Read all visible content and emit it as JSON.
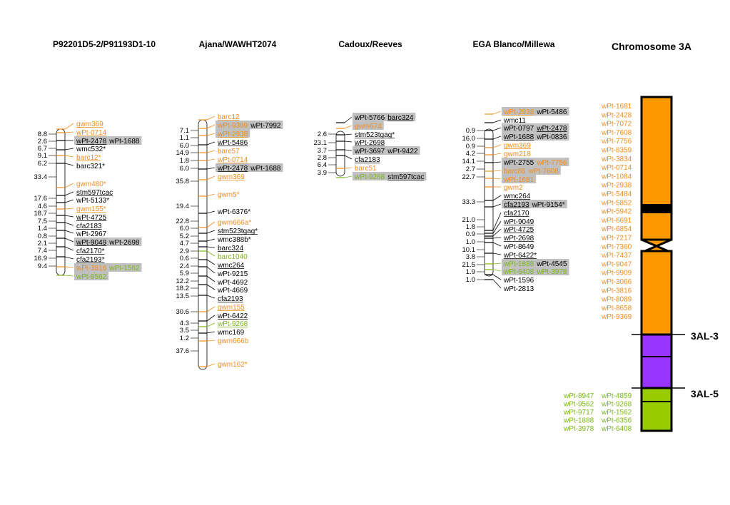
{
  "colors": {
    "orange": "#f08c1e",
    "green": "#7ab51d",
    "black": "#000000",
    "highlight": "#c0c0c0",
    "chrom_orange": "#ff9900",
    "chrom_purple": "#9933ff",
    "chrom_green": "#99cc00"
  },
  "maps": [
    {
      "title": "P92201D5-2/P91193D1-10",
      "intervals": [
        "8.8",
        "2.6",
        "6.7",
        "9.1",
        "6.2",
        "33.4",
        "17.6",
        "4.6",
        "18.7",
        "7.5",
        "1.4",
        "0.8",
        "2.1",
        "7.4",
        "16.9",
        "9.4"
      ],
      "loci": [
        {
          "parts": [
            {
              "text": "gwm369",
              "color": "orange",
              "u": true
            }
          ]
        },
        {
          "parts": [
            {
              "text": "wPt-0714",
              "color": "orange",
              "u": true
            }
          ]
        },
        {
          "parts": [
            {
              "text": "wPt-2478",
              "color": "black",
              "u": true
            },
            {
              "text": "wPt-1688",
              "color": "black",
              "u": false
            }
          ],
          "hl": true
        },
        {
          "parts": [
            {
              "text": "wmc532*",
              "color": "black",
              "u": false
            }
          ]
        },
        {
          "parts": [
            {
              "text": "barc12*",
              "color": "orange",
              "u": true
            }
          ]
        },
        {
          "parts": [
            {
              "text": "barc321*",
              "color": "black",
              "u": false
            }
          ]
        },
        {
          "parts": [
            {
              "text": "gwm480*",
              "color": "orange",
              "u": false
            }
          ]
        },
        {
          "parts": [
            {
              "text": "stm597tcac",
              "color": "black",
              "u": true
            }
          ]
        },
        {
          "parts": [
            {
              "text": "wPt-5133*",
              "color": "black",
              "u": false
            }
          ]
        },
        {
          "parts": [
            {
              "text": "gwm155*",
              "color": "orange",
              "u": true
            }
          ]
        },
        {
          "parts": [
            {
              "text": "wPt-4725",
              "color": "black",
              "u": true
            }
          ]
        },
        {
          "parts": [
            {
              "text": "cfa2183",
              "color": "black",
              "u": true
            }
          ]
        },
        {
          "parts": [
            {
              "text": "wPt-2967",
              "color": "black",
              "u": false
            }
          ]
        },
        {
          "parts": [
            {
              "text": "wPt-9049",
              "color": "black",
              "u": true
            },
            {
              "text": "wPt-2698",
              "color": "black",
              "u": false
            }
          ],
          "hl": true
        },
        {
          "parts": [
            {
              "text": "cfa2170*",
              "color": "black",
              "u": true
            }
          ]
        },
        {
          "parts": [
            {
              "text": "cfa2193*",
              "color": "black",
              "u": true
            }
          ]
        },
        {
          "parts": [
            {
              "text": "wPt-3816",
              "color": "orange",
              "u": false
            },
            {
              "text": "wPt-1562",
              "color": "green",
              "u": false
            }
          ],
          "hl": true
        },
        {
          "parts": [
            {
              "text": "wPt-9562",
              "color": "green",
              "u": false
            }
          ],
          "hl": true
        }
      ]
    },
    {
      "title": "Ajana/WAWHT2074",
      "intervals": [
        "7.1",
        "1.1",
        "6.0",
        "14.9",
        "1.8",
        "6.0",
        "35.8",
        "19.4",
        "22.8",
        "6.0",
        "5.2",
        "4.7",
        "2.9",
        "0.6",
        "2.4",
        "5.9",
        "12.2",
        "18.2",
        "13.5",
        "30.6",
        "4.3",
        "3.5",
        "1.2",
        "37.6"
      ],
      "loci": [
        {
          "parts": [
            {
              "text": "barc12",
              "color": "orange",
              "u": true
            }
          ]
        },
        {
          "parts": [
            {
              "text": "wPt-9369",
              "color": "orange",
              "u": false
            },
            {
              "text": "wPt-7992",
              "color": "black",
              "u": false
            }
          ],
          "hl": true
        },
        {
          "parts": [
            {
              "text": "wPt-2938",
              "color": "orange",
              "u": true
            }
          ],
          "hl": true
        },
        {
          "parts": [
            {
              "text": "wPt-5486",
              "color": "black",
              "u": true
            }
          ]
        },
        {
          "parts": [
            {
              "text": "barc57",
              "color": "orange",
              "u": false
            }
          ]
        },
        {
          "parts": [
            {
              "text": "wPt-0714",
              "color": "orange",
              "u": true
            }
          ]
        },
        {
          "parts": [
            {
              "text": "wPt-2478",
              "color": "black",
              "u": true
            },
            {
              "text": "wPt-1688",
              "color": "black",
              "u": false
            }
          ],
          "hl": true
        },
        {
          "parts": [
            {
              "text": "gwm369",
              "color": "orange",
              "u": true
            }
          ]
        },
        {
          "parts": [
            {
              "text": "gwm5*",
              "color": "orange",
              "u": false
            }
          ]
        },
        {
          "parts": [
            {
              "text": "wPt-6376*",
              "color": "black",
              "u": false
            }
          ]
        },
        {
          "parts": [
            {
              "text": "gwm666a*",
              "color": "orange",
              "u": false
            }
          ]
        },
        {
          "parts": [
            {
              "text": "stm523tgag*",
              "color": "black",
              "u": true
            }
          ]
        },
        {
          "parts": [
            {
              "text": "wmc388b*",
              "color": "black",
              "u": false
            }
          ]
        },
        {
          "parts": [
            {
              "text": "barc324",
              "color": "black",
              "u": true
            }
          ]
        },
        {
          "parts": [
            {
              "text": "barc1040",
              "color": "green",
              "u": false
            }
          ]
        },
        {
          "parts": [
            {
              "text": "wmc264",
              "color": "black",
              "u": true
            }
          ]
        },
        {
          "parts": [
            {
              "text": "wPt-9215",
              "color": "black",
              "u": false
            }
          ]
        },
        {
          "parts": [
            {
              "text": "wPt-4692",
              "color": "black",
              "u": false
            }
          ]
        },
        {
          "parts": [
            {
              "text": "wPt-4669",
              "color": "black",
              "u": false
            }
          ]
        },
        {
          "parts": [
            {
              "text": "cfa2193",
              "color": "black",
              "u": true
            }
          ]
        },
        {
          "parts": [
            {
              "text": "gwm155",
              "color": "orange",
              "u": true
            }
          ]
        },
        {
          "parts": [
            {
              "text": "wPt-6422",
              "color": "black",
              "u": true
            }
          ]
        },
        {
          "parts": [
            {
              "text": "wPt-9268",
              "color": "green",
              "u": true
            }
          ]
        },
        {
          "parts": [
            {
              "text": "wmc169",
              "color": "black",
              "u": false
            }
          ]
        },
        {
          "parts": [
            {
              "text": "gwm666b",
              "color": "orange",
              "u": false
            }
          ]
        },
        {
          "parts": [
            {
              "text": "gwm162*",
              "color": "orange",
              "u": false
            }
          ]
        }
      ]
    },
    {
      "title": "Cadoux/Reeves",
      "intervals": [
        "2.6",
        "23.1",
        "3.7",
        "2.8",
        "6.4",
        "3.9"
      ],
      "loci": [
        {
          "parts": [
            {
              "text": "wPt-5766",
              "color": "black",
              "u": false
            },
            {
              "text": "barc324",
              "color": "black",
              "u": true
            }
          ],
          "hl": true
        },
        {
          "parts": [
            {
              "text": "gwm674",
              "color": "orange",
              "u": false
            }
          ],
          "hl": true
        },
        {
          "parts": [
            {
              "text": "stm523tgag*",
              "color": "black",
              "u": true
            }
          ]
        },
        {
          "parts": [
            {
              "text": "wPt-2698",
              "color": "black",
              "u": true
            }
          ]
        },
        {
          "parts": [
            {
              "text": "wPt-3697",
              "color": "black",
              "u": false
            },
            {
              "text": "wPt-9422",
              "color": "black",
              "u": false
            }
          ],
          "hl": true
        },
        {
          "parts": [
            {
              "text": "cfa2183",
              "color": "black",
              "u": true
            }
          ]
        },
        {
          "parts": [
            {
              "text": "barc51",
              "color": "orange",
              "u": false
            }
          ]
        },
        {
          "parts": [
            {
              "text": "wPt-9268",
              "color": "green",
              "u": false
            },
            {
              "text": "stm597tcac",
              "color": "black",
              "u": true
            }
          ],
          "hl": true
        }
      ]
    },
    {
      "title": "EGA Blanco/Millewa",
      "intervals": [
        "0.9",
        "16.0",
        "0.9",
        "4.2",
        "14.1",
        "2.7",
        "22.7",
        "33.3",
        "21.0",
        "1.8",
        "0.9",
        "1.0",
        "10.1",
        "3.8",
        "21.5",
        "1.9",
        "1.0"
      ],
      "loci": [
        {
          "parts": [
            {
              "text": "wPt-2938",
              "color": "orange",
              "u": true
            },
            {
              "text": "wPt-5486",
              "color": "black",
              "u": false
            }
          ],
          "hl": true
        },
        {
          "parts": [
            {
              "text": "wmc11",
              "color": "black",
              "u": false
            }
          ]
        },
        {
          "parts": [
            {
              "text": "wPt-0797",
              "color": "black",
              "u": false
            },
            {
              "text": "wPt-2478",
              "color": "black",
              "u": true
            }
          ],
          "hl": true
        },
        {
          "parts": [
            {
              "text": "wPt-1688",
              "color": "black",
              "u": true
            },
            {
              "text": "wPt-0836",
              "color": "black",
              "u": false
            }
          ],
          "hl": true
        },
        {
          "parts": [
            {
              "text": "gwm369",
              "color": "orange",
              "u": true
            }
          ]
        },
        {
          "parts": [
            {
              "text": "gwm218",
              "color": "orange",
              "u": false
            }
          ]
        },
        {
          "parts": [
            {
              "text": "wPt-2755",
              "color": "black",
              "u": false
            },
            {
              "text": "wPt-7756",
              "color": "orange",
              "u": false
            }
          ],
          "hl": true
        },
        {
          "parts": [
            {
              "text": "barc86",
              "color": "orange",
              "u": false
            },
            {
              "text": "wPt-7608",
              "color": "orange",
              "u": false
            }
          ],
          "hl": true
        },
        {
          "parts": [
            {
              "text": "wPt-1681",
              "color": "orange",
              "u": false
            }
          ],
          "hl": true
        },
        {
          "parts": [
            {
              "text": "gwm2",
              "color": "orange",
              "u": false
            }
          ]
        },
        {
          "parts": [
            {
              "text": "wmc264",
              "color": "black",
              "u": true
            }
          ]
        },
        {
          "parts": [
            {
              "text": "cfa2193",
              "color": "black",
              "u": true
            },
            {
              "text": "wPt-9154*",
              "color": "black",
              "u": false
            }
          ],
          "hl": true
        },
        {
          "parts": [
            {
              "text": "cfa2170",
              "color": "black",
              "u": true
            }
          ]
        },
        {
          "parts": [
            {
              "text": "wPt-9049",
              "color": "black",
              "u": true
            }
          ]
        },
        {
          "parts": [
            {
              "text": "wPt-4725",
              "color": "black",
              "u": true
            }
          ]
        },
        {
          "parts": [
            {
              "text": "wPt-2698",
              "color": "black",
              "u": true
            }
          ]
        },
        {
          "parts": [
            {
              "text": "wPt-8649",
              "color": "black",
              "u": false
            }
          ]
        },
        {
          "parts": [
            {
              "text": "wPt-6422*",
              "color": "black",
              "u": true
            }
          ]
        },
        {
          "parts": [
            {
              "text": "wPt-1888",
              "color": "green",
              "u": false
            },
            {
              "text": "wPt-4545",
              "color": "black",
              "u": false
            }
          ],
          "hl": true
        },
        {
          "parts": [
            {
              "text": "wPt-6408",
              "color": "green",
              "u": false
            },
            {
              "text": "wPt-3978",
              "color": "green",
              "u": false
            }
          ],
          "hl": true
        },
        {
          "parts": [
            {
              "text": "wPt-1596",
              "color": "black",
              "u": false
            }
          ]
        },
        {
          "parts": [
            {
              "text": "wPt-2813",
              "color": "black",
              "u": false
            }
          ]
        }
      ]
    }
  ],
  "chromosome": {
    "title": "Chromosome 3A",
    "orange_markers": [
      "wPt-1681",
      "wPt-2428",
      "wPt-7072",
      "wPt-7608",
      "wPt-7756",
      "wPt-8359",
      "wPt-3834",
      "wPt-0714",
      "wPt-1084",
      "wPt-2938",
      "wPt-5484",
      "wPt-5852",
      "wPt-5942",
      "wPt-6691",
      "wPt-6854",
      "wPt-7217",
      "wPt-7360",
      "wPt-7437",
      "wPt-9047",
      "wPt-9909",
      "wPt-3066",
      "wPt-3816",
      "wPt-8089",
      "wPt-8658",
      "wPt-9369"
    ],
    "green_markers_left": [
      "wPt-8947",
      "wPt-9562",
      "wPt-9717",
      "wPt-1888",
      "wPt-3978"
    ],
    "green_markers_right": [
      "wPt-4859",
      "wPt-9268",
      "wPt-1562",
      "wPt-6356",
      "wPt-6408"
    ],
    "bin_labels": [
      "3AL-3",
      "3AL-5"
    ]
  }
}
